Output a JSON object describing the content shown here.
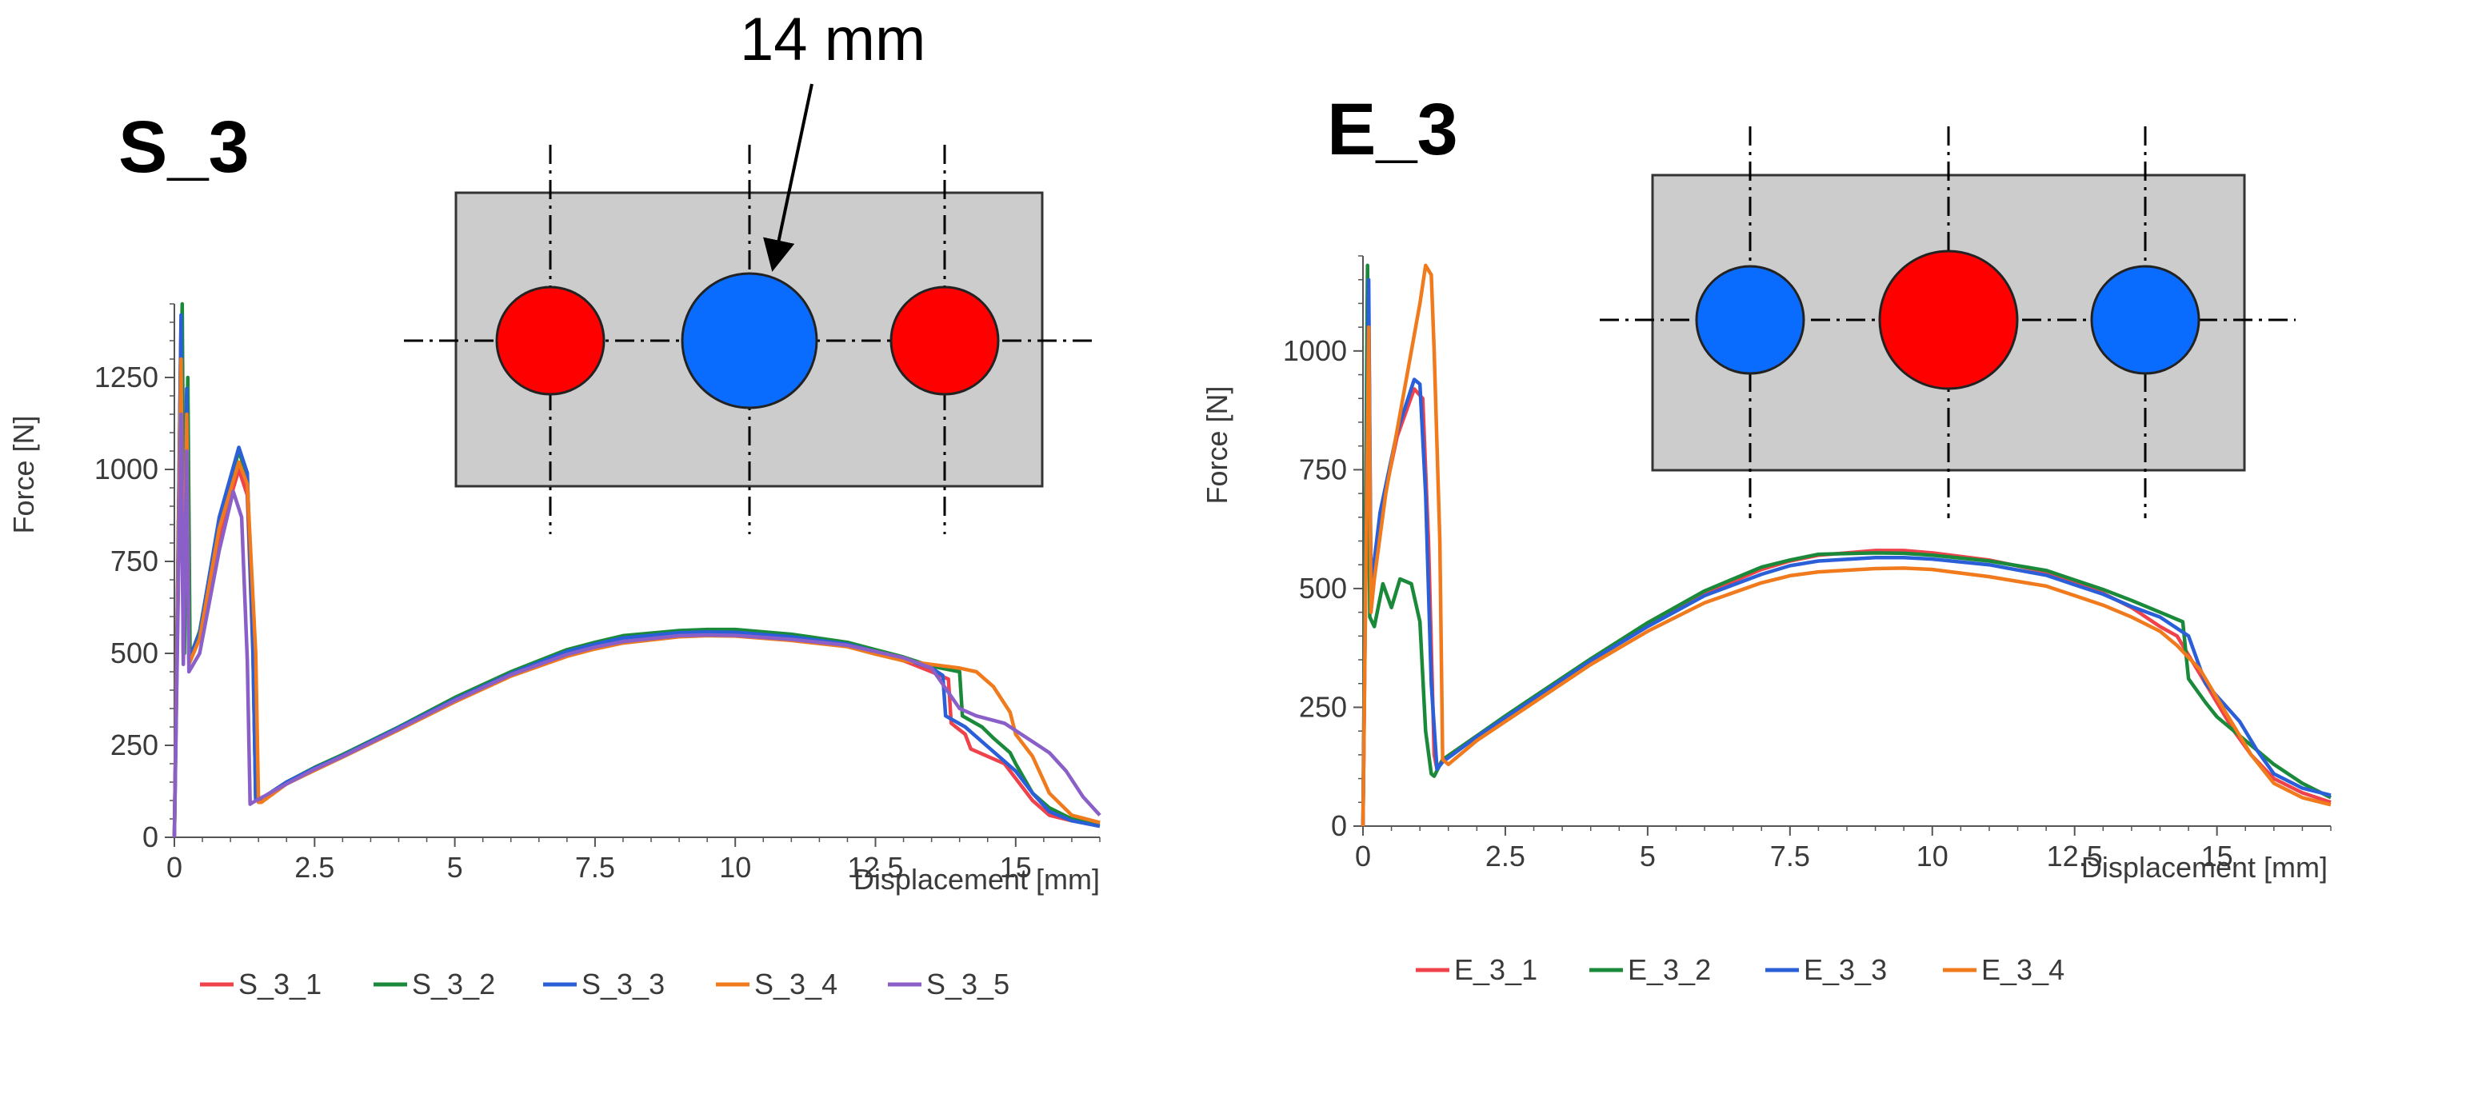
{
  "annotation": {
    "label": "14 mm"
  },
  "chart_data": [
    {
      "type": "line",
      "title": "S_3",
      "xlabel": "Displacement [mm]",
      "ylabel": "Force [N]",
      "xlim": [
        0,
        16.5
      ],
      "ylim": [
        0,
        1450
      ],
      "xticks": [
        0,
        2.5,
        5,
        7.5,
        10,
        12.5,
        15
      ],
      "xtick_labels": [
        "0",
        "2.5",
        "5",
        "7.5",
        "10",
        "12.5",
        "15"
      ],
      "yticks": [
        0,
        250,
        500,
        750,
        1000,
        1250
      ],
      "ytick_labels": [
        "0",
        "250",
        "500",
        "750",
        "1000",
        "1250"
      ],
      "legend_position": "bottom",
      "inset": {
        "hole_colors": [
          "#ff0000",
          "#0a6cff",
          "#ff0000"
        ],
        "hole_sizes": [
          "small",
          "large",
          "small"
        ]
      },
      "series": [
        {
          "name": "S_3_1",
          "color": "#f0424a",
          "x": [
            0,
            0.12,
            0.16,
            0.22,
            0.26,
            0.45,
            0.8,
            1.15,
            1.3,
            1.4,
            1.45,
            1.5,
            2,
            2.5,
            3,
            4,
            5,
            6,
            7,
            7.5,
            8,
            9,
            9.5,
            10,
            11,
            12,
            12.5,
            13,
            13.5,
            13.8,
            13.85,
            14.1,
            14.2,
            14.5,
            14.8,
            15.0,
            15.3,
            15.6,
            16,
            16.5
          ],
          "y": [
            0,
            1400,
            500,
            1200,
            480,
            540,
            820,
            1000,
            930,
            500,
            110,
            100,
            150,
            185,
            220,
            295,
            370,
            440,
            495,
            515,
            532,
            550,
            553,
            552,
            540,
            520,
            500,
            480,
            450,
            430,
            310,
            280,
            240,
            220,
            200,
            160,
            100,
            60,
            45,
            35
          ]
        },
        {
          "name": "S_3_2",
          "color": "#1a8a3a",
          "x": [
            0,
            0.14,
            0.18,
            0.24,
            0.28,
            0.45,
            0.8,
            1.15,
            1.3,
            1.4,
            1.45,
            1.5,
            2,
            2.5,
            3,
            4,
            5,
            6,
            7,
            7.5,
            8,
            9,
            9.5,
            10,
            11,
            12,
            12.5,
            13,
            13.5,
            14.0,
            14.05,
            14.4,
            14.6,
            14.9,
            15.0,
            15.3,
            15.6,
            16,
            16.5
          ],
          "y": [
            0,
            1450,
            500,
            1250,
            490,
            560,
            860,
            1050,
            980,
            520,
            105,
            100,
            150,
            190,
            225,
            300,
            380,
            450,
            510,
            530,
            548,
            562,
            565,
            565,
            552,
            530,
            510,
            490,
            465,
            450,
            330,
            300,
            270,
            230,
            200,
            120,
            80,
            50,
            40
          ]
        },
        {
          "name": "S_3_3",
          "color": "#2a5fd8",
          "x": [
            0,
            0.12,
            0.16,
            0.22,
            0.26,
            0.45,
            0.8,
            1.15,
            1.3,
            1.4,
            1.45,
            1.5,
            2,
            2.5,
            3,
            4,
            5,
            6,
            7,
            7.5,
            8,
            9,
            9.5,
            10,
            11,
            12,
            12.5,
            13,
            13.5,
            13.7,
            13.75,
            14.1,
            14.4,
            14.7,
            15.0,
            15.3,
            15.6,
            16,
            16.5
          ],
          "y": [
            0,
            1420,
            500,
            1220,
            485,
            555,
            870,
            1060,
            990,
            520,
            100,
            100,
            150,
            188,
            222,
            298,
            375,
            445,
            505,
            525,
            542,
            556,
            558,
            557,
            545,
            525,
            505,
            485,
            460,
            440,
            330,
            300,
            260,
            220,
            180,
            120,
            70,
            45,
            30
          ]
        },
        {
          "name": "S_3_4",
          "color": "#f07a1c",
          "x": [
            0,
            0.12,
            0.16,
            0.22,
            0.26,
            0.45,
            0.8,
            1.15,
            1.3,
            1.45,
            1.5,
            1.55,
            2,
            2.5,
            3,
            4,
            5,
            6,
            7,
            7.5,
            8,
            9,
            9.5,
            10,
            11,
            12,
            12.5,
            13,
            13.5,
            14,
            14.3,
            14.6,
            14.9,
            15.0,
            15.3,
            15.6,
            16,
            16.5
          ],
          "y": [
            0,
            1300,
            480,
            1150,
            470,
            540,
            840,
            1020,
            960,
            500,
            95,
            95,
            145,
            182,
            218,
            292,
            368,
            438,
            492,
            512,
            528,
            545,
            548,
            547,
            535,
            518,
            498,
            480,
            470,
            460,
            450,
            410,
            340,
            280,
            220,
            120,
            60,
            40
          ]
        },
        {
          "name": "S_3_5",
          "color": "#8a5fc8",
          "x": [
            0,
            0.12,
            0.16,
            0.22,
            0.26,
            0.45,
            0.8,
            1.05,
            1.2,
            1.3,
            1.35,
            1.4,
            2,
            2.5,
            3,
            4,
            5,
            6,
            7,
            7.5,
            8,
            9,
            9.5,
            10,
            11,
            12,
            12.5,
            13,
            13.5,
            14,
            14.3,
            14.8,
            15.3,
            15.6,
            15.9,
            16.2,
            16.5
          ],
          "y": [
            0,
            1150,
            470,
            1050,
            450,
            500,
            780,
            940,
            870,
            480,
            90,
            95,
            145,
            185,
            220,
            295,
            372,
            442,
            497,
            517,
            532,
            548,
            550,
            549,
            538,
            522,
            505,
            488,
            460,
            350,
            330,
            310,
            260,
            230,
            180,
            110,
            60
          ]
        }
      ]
    },
    {
      "type": "line",
      "title": "E_3",
      "xlabel": "Displacement [mm]",
      "ylabel": "Force [N]",
      "xlim": [
        0,
        17
      ],
      "ylim": [
        0,
        1200
      ],
      "xticks": [
        0,
        2.5,
        5,
        7.5,
        10,
        12.5,
        15
      ],
      "xtick_labels": [
        "0",
        "2.5",
        "5",
        "7.5",
        "10",
        "12.5",
        "15"
      ],
      "yticks": [
        0,
        250,
        500,
        750,
        1000
      ],
      "ytick_labels": [
        "0",
        "250",
        "500",
        "750",
        "1000"
      ],
      "legend_position": "bottom",
      "inset": {
        "hole_colors": [
          "#0a6cff",
          "#ff0000",
          "#0a6cff"
        ],
        "hole_sizes": [
          "small",
          "large",
          "small"
        ]
      },
      "series": [
        {
          "name": "E_3_1",
          "color": "#f0424a",
          "x": [
            0,
            0.1,
            0.14,
            0.2,
            0.3,
            0.6,
            0.9,
            1.05,
            1.15,
            1.25,
            1.3,
            1.4,
            2,
            2.5,
            3,
            4,
            5,
            6,
            7,
            7.5,
            8,
            9,
            9.5,
            10,
            11,
            12,
            12.5,
            13,
            13.5,
            14,
            14.3,
            14.6,
            15.0,
            15.3,
            15.6,
            16,
            16.5,
            17
          ],
          "y": [
            0,
            1100,
            480,
            560,
            650,
            820,
            920,
            900,
            600,
            150,
            120,
            140,
            190,
            230,
            270,
            350,
            425,
            490,
            540,
            558,
            570,
            580,
            580,
            575,
            560,
            535,
            515,
            490,
            460,
            420,
            400,
            340,
            260,
            200,
            150,
            100,
            70,
            50
          ]
        },
        {
          "name": "E_3_2",
          "color": "#1a8a3a",
          "x": [
            0,
            0.08,
            0.12,
            0.2,
            0.35,
            0.5,
            0.65,
            0.85,
            1.0,
            1.1,
            1.2,
            1.25,
            1.4,
            2,
            2.5,
            3,
            4,
            5,
            6,
            7,
            7.5,
            8,
            9,
            9.5,
            10,
            11,
            12,
            12.5,
            13,
            13.5,
            14,
            14.4,
            14.5,
            14.8,
            15.0,
            15.5,
            16,
            16.5,
            17
          ],
          "y": [
            0,
            1180,
            440,
            420,
            510,
            460,
            520,
            510,
            430,
            200,
            110,
            105,
            140,
            190,
            232,
            272,
            352,
            428,
            495,
            545,
            560,
            572,
            575,
            574,
            570,
            558,
            538,
            518,
            498,
            475,
            450,
            430,
            310,
            260,
            230,
            180,
            130,
            90,
            60
          ]
        },
        {
          "name": "E_3_3",
          "color": "#2a5fd8",
          "x": [
            0,
            0.1,
            0.14,
            0.2,
            0.3,
            0.6,
            0.9,
            1.0,
            1.1,
            1.2,
            1.3,
            1.4,
            2,
            2.5,
            3,
            4,
            5,
            6,
            7,
            7.5,
            8,
            9,
            9.5,
            10,
            11,
            12,
            12.5,
            13,
            13.5,
            14,
            14.5,
            14.8,
            15.1,
            15.4,
            15.7,
            16,
            16.5,
            17
          ],
          "y": [
            0,
            1150,
            490,
            560,
            660,
            830,
            940,
            930,
            700,
            300,
            120,
            135,
            188,
            228,
            268,
            348,
            420,
            485,
            530,
            548,
            558,
            565,
            565,
            562,
            550,
            528,
            508,
            488,
            462,
            440,
            400,
            300,
            260,
            220,
            160,
            110,
            80,
            65
          ]
        },
        {
          "name": "E_3_4",
          "color": "#f07a1c",
          "x": [
            0,
            0.1,
            0.14,
            0.2,
            0.4,
            0.7,
            1.0,
            1.1,
            1.2,
            1.25,
            1.35,
            1.4,
            1.5,
            2,
            2.5,
            3,
            4,
            5,
            6,
            7,
            7.5,
            8,
            9,
            9.5,
            10,
            11,
            12,
            12.5,
            13,
            13.5,
            14,
            14.3,
            14.7,
            15.0,
            15.3,
            15.6,
            16,
            16.5,
            17
          ],
          "y": [
            0,
            1050,
            450,
            520,
            700,
            900,
            1100,
            1180,
            1160,
            1000,
            600,
            140,
            130,
            180,
            220,
            260,
            340,
            410,
            470,
            512,
            527,
            535,
            542,
            543,
            540,
            525,
            505,
            485,
            465,
            440,
            410,
            380,
            330,
            270,
            210,
            150,
            90,
            60,
            45
          ]
        }
      ]
    }
  ]
}
